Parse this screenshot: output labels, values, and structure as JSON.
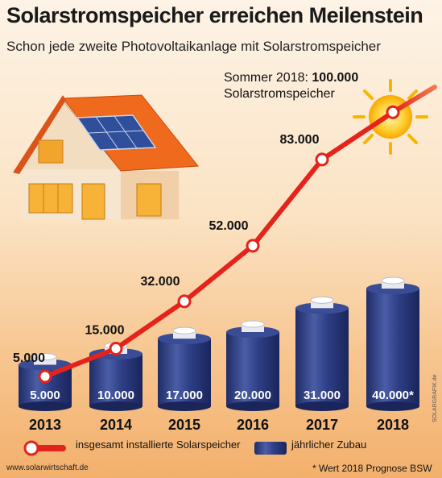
{
  "title": "Solarstromspeicher erreichen Meilenstein",
  "subtitle": "Schon jede zweite Photovoltaikanlage mit Solarstromspeicher",
  "annotation": {
    "line1_prefix": "Sommer 2018: ",
    "line1_value": "100.000",
    "line2": "Solarstromspeicher"
  },
  "legend": {
    "line_label": "insgesamt installierte Solarspeicher",
    "bar_label": "jährlicher Zubau"
  },
  "footnote": "* Wert 2018 Prognose BSW",
  "source": "www.solarwirtschaft.de",
  "watermark": "SOLARGRAFIK.de",
  "colors": {
    "line": "#e4231b",
    "battery": "#2b3a80",
    "battery_light": "#4c5fa8",
    "sun": "#f7b500"
  },
  "chart_data": {
    "type": "bar",
    "categories": [
      "2013",
      "2014",
      "2015",
      "2016",
      "2017",
      "2018"
    ],
    "series": [
      {
        "name": "insgesamt installierte Solarspeicher",
        "type": "line",
        "values": [
          5000,
          15000,
          32000,
          52000,
          83000,
          100000
        ],
        "labels": [
          "5.000",
          "15.000",
          "32.000",
          "52.000",
          "83.000",
          ""
        ]
      },
      {
        "name": "jährlicher Zubau",
        "type": "bar",
        "values": [
          5000,
          10000,
          17000,
          20000,
          31000,
          40000
        ],
        "labels": [
          "5.000",
          "10.000",
          "17.000",
          "20.000",
          "31.000",
          "40.000*"
        ]
      }
    ]
  }
}
